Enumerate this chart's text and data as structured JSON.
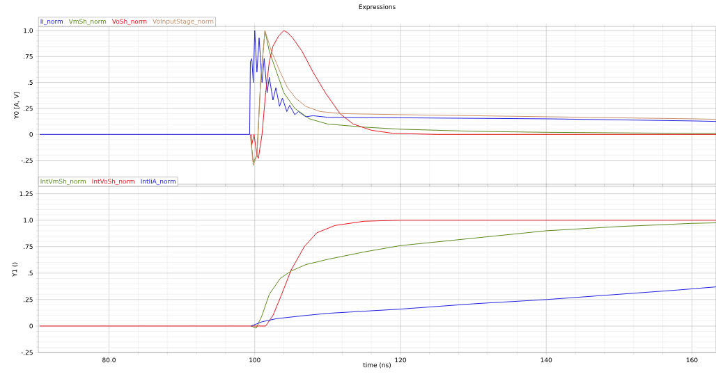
{
  "chart_data": [
    {
      "type": "line",
      "title": "Expressions",
      "ylabel": "Y0 [A, V]",
      "xlim": [
        70.3,
        163.3
      ],
      "ylim": [
        -0.48,
        1.04
      ],
      "xticks": [
        80,
        100,
        120,
        140,
        160
      ],
      "yticks": [
        {
          "value": -0.25,
          "label": "-.25"
        },
        0,
        {
          "value": 0.25,
          "label": ".25"
        },
        {
          "value": 0.5,
          "label": ".5"
        },
        {
          "value": 0.75,
          "label": ".75"
        },
        {
          "value": 1,
          "label": "1.0"
        }
      ],
      "tick_labels": "y",
      "grid": true,
      "legend": "top left",
      "marker": "none",
      "line_style": "solid",
      "series": [
        {
          "name": "Ii_norm",
          "color": "#2020e0",
          "x": [
            70.5,
            99.3,
            99.4,
            99.6,
            99.8,
            100.0,
            100.3,
            100.6,
            101.0,
            101.3,
            101.7,
            102.0,
            102.5,
            102.9,
            103.4,
            103.8,
            104.4,
            104.8,
            105.5,
            106.0,
            107.0,
            108.0,
            110.0,
            120.0,
            140.0,
            160.0,
            163.3
          ],
          "values": [
            0,
            0,
            0.7,
            0.73,
            0.5,
            1.0,
            0.6,
            0.93,
            0.5,
            0.73,
            0.4,
            0.55,
            0.33,
            0.45,
            0.27,
            0.35,
            0.22,
            0.28,
            0.19,
            0.22,
            0.17,
            0.18,
            0.165,
            0.16,
            0.15,
            0.13,
            0.125
          ]
        },
        {
          "name": "VmSh_norm",
          "color": "#5a8a1e",
          "x": [
            99.4,
            99.8,
            100.3,
            100.8,
            101.4,
            102.0,
            103.0,
            104.0,
            105.5,
            107.5,
            110.0,
            115.0,
            120.0,
            130.0,
            140.0,
            160.0,
            163.3
          ],
          "values": [
            0,
            -0.27,
            -0.2,
            0.5,
            1.0,
            0.8,
            0.6,
            0.4,
            0.25,
            0.15,
            0.1,
            0.07,
            0.05,
            0.03,
            0.02,
            0.01,
            0.01
          ]
        },
        {
          "name": "VoSh_norm",
          "color": "#e8141e",
          "x": [
            99.5,
            99.6,
            99.9,
            100.3,
            100.5,
            101.0,
            101.5,
            102.0,
            102.5,
            103.3,
            104.0,
            104.5,
            105.2,
            106.5,
            108.0,
            109.7,
            111.7,
            113.5,
            116.0,
            119.0,
            125.0,
            163.3
          ],
          "values": [
            0,
            -0.1,
            0,
            -0.2,
            -0.23,
            0,
            0.4,
            0.7,
            0.85,
            0.95,
            1.0,
            0.98,
            0.93,
            0.8,
            0.6,
            0.4,
            0.2,
            0.1,
            0.04,
            0.01,
            0,
            0
          ]
        },
        {
          "name": "VoInputStage_norm",
          "color": "#c8906a",
          "x": [
            99.4,
            99.8,
            100.3,
            100.8,
            101.4,
            102.3,
            103.5,
            104.5,
            105.6,
            107.0,
            109.0,
            112.0,
            120.0,
            140.0,
            160.0,
            163.3
          ],
          "values": [
            0,
            -0.3,
            -0.2,
            0.5,
            1.0,
            0.8,
            0.6,
            0.45,
            0.35,
            0.27,
            0.22,
            0.2,
            0.19,
            0.17,
            0.15,
            0.145
          ]
        }
      ]
    },
    {
      "type": "line",
      "xlabel": "time (ns)",
      "ylabel": "Y1 ()",
      "xlim": [
        70.3,
        163.3
      ],
      "ylim": [
        -0.25,
        1.32
      ],
      "xticks": [
        {
          "value": 80,
          "label": "80.0"
        },
        100,
        120,
        140,
        160
      ],
      "yticks": [
        {
          "value": -0.25,
          "label": "-.25"
        },
        0,
        {
          "value": 0.25,
          "label": ".25"
        },
        {
          "value": 0.5,
          "label": ".5"
        },
        {
          "value": 0.75,
          "label": ".75"
        },
        {
          "value": 1,
          "label": "1.0"
        },
        1.25
      ],
      "grid": true,
      "legend": "top left",
      "marker": "none",
      "line_style": "solid",
      "series": [
        {
          "name": "IntVmSh_norm",
          "color": "#5a8a1e",
          "x": [
            99.5,
            100.2,
            101.0,
            102.0,
            103.5,
            105.0,
            107.0,
            110.0,
            115.0,
            120.0,
            130.0,
            140.0,
            150.0,
            160.0,
            163.3
          ],
          "values": [
            0,
            -0.02,
            0.1,
            0.3,
            0.45,
            0.52,
            0.58,
            0.63,
            0.7,
            0.76,
            0.83,
            0.9,
            0.94,
            0.97,
            0.975
          ]
        },
        {
          "name": "IntVoSh_norm",
          "color": "#e8141e",
          "x": [
            70.5,
            100.5,
            101.5,
            102.5,
            103.7,
            105.0,
            106.8,
            108.5,
            111.0,
            115.0,
            120.0,
            163.3
          ],
          "values": [
            0,
            0,
            0,
            0.1,
            0.3,
            0.53,
            0.75,
            0.88,
            0.95,
            0.99,
            1.0,
            1.0
          ]
        },
        {
          "name": "IntIiA_norm",
          "color": "#2020e0",
          "x": [
            99.5,
            101.0,
            103.0,
            107.0,
            110.0,
            120.0,
            130.0,
            140.0,
            150.0,
            158.0,
            163.3
          ],
          "values": [
            0,
            0.04,
            0.07,
            0.1,
            0.12,
            0.16,
            0.21,
            0.25,
            0.3,
            0.34,
            0.37
          ]
        }
      ]
    }
  ]
}
